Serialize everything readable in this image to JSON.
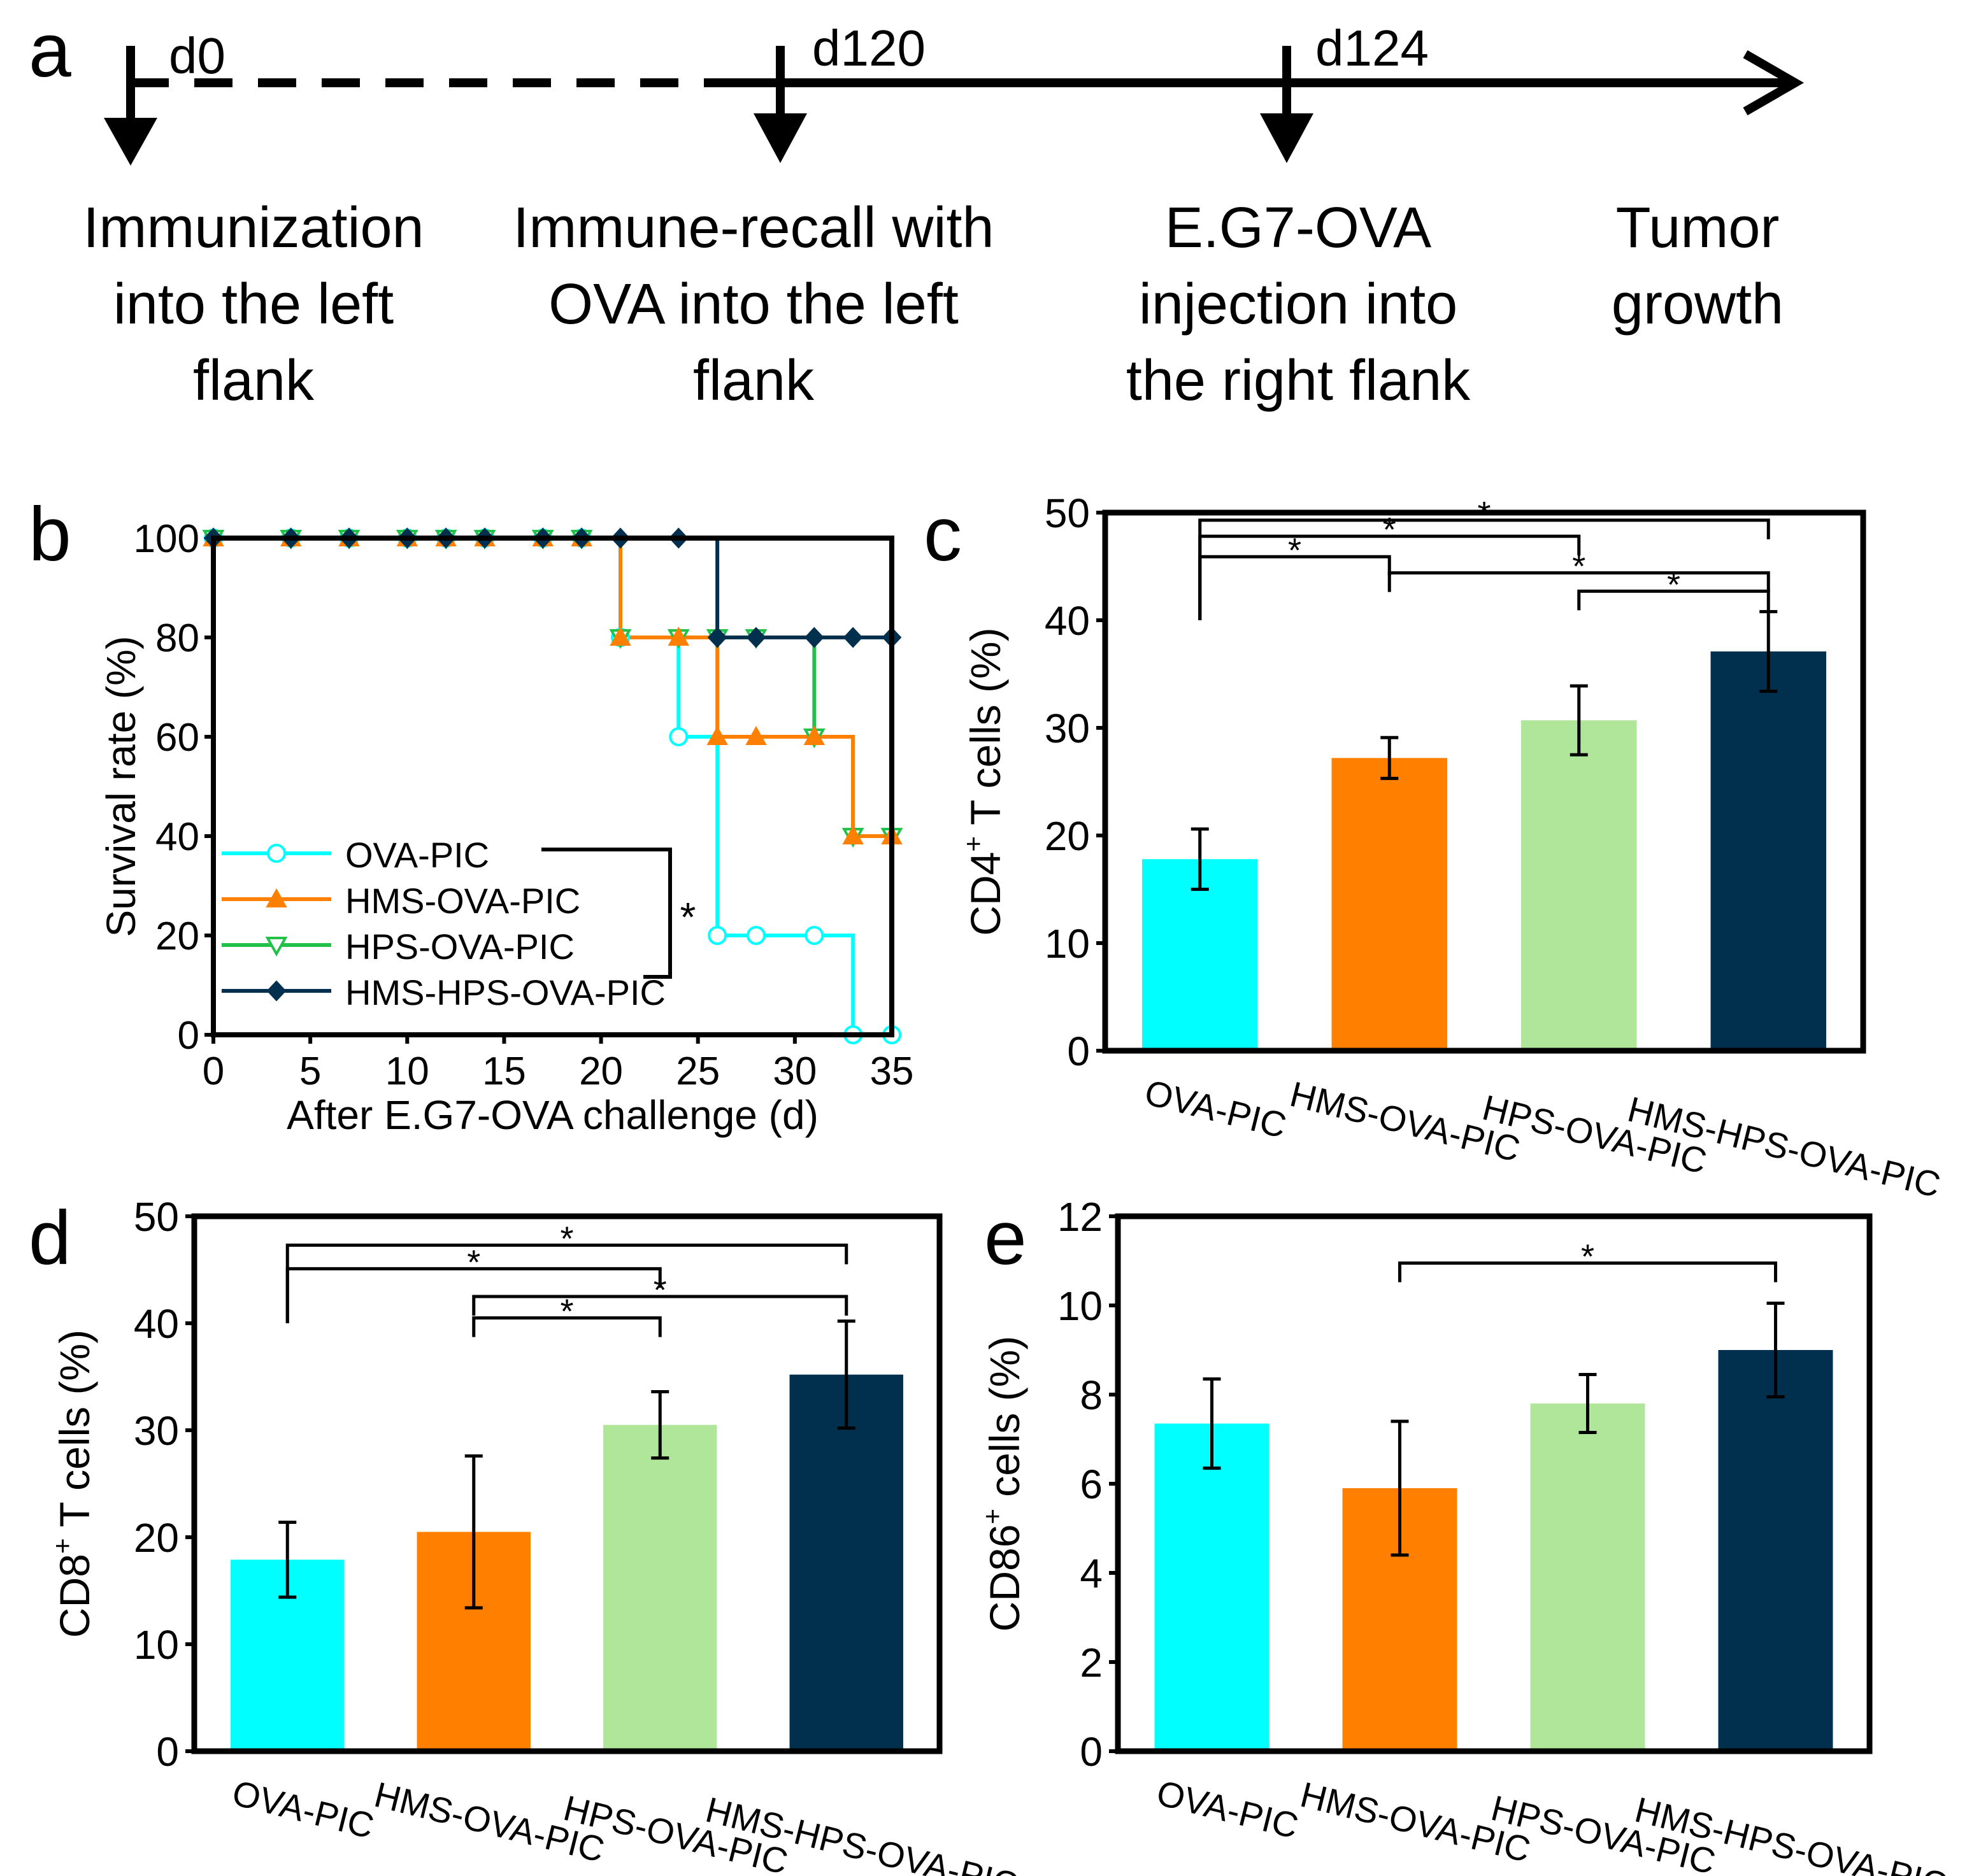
{
  "panel_labels": {
    "a": "a",
    "b": "b",
    "c": "c",
    "d": "d",
    "e": "e"
  },
  "colors": {
    "OVA-PIC": "#00ffff",
    "HMS-OVA-PIC": "#ff8000",
    "HPS-OVA-PIC": "#b0e69a",
    "HMS-HPS-OVA-PIC": "#00304d",
    "HPS-OVA-PIC-line": "#22c24a"
  },
  "timeline": {
    "days": [
      "d0",
      "d120",
      "d124"
    ],
    "steps": [
      [
        "Immunization",
        "into the left",
        "flank"
      ],
      [
        "Immune-recall with",
        "OVA into the left",
        "flank"
      ],
      [
        "E.G7-OVA",
        "injection into",
        "the right flank"
      ],
      [
        "Tumor",
        "growth"
      ]
    ]
  },
  "chart_data": [
    {
      "panel": "b",
      "type": "line",
      "step": true,
      "xlabel": "After E.G7-OVA challenge (d)",
      "ylabel": "Survival rate (%)",
      "xlim": [
        0,
        35
      ],
      "ylim": [
        0,
        100
      ],
      "xticks": [
        0,
        5,
        10,
        15,
        20,
        25,
        30,
        35
      ],
      "yticks": [
        0,
        20,
        40,
        60,
        80,
        100
      ],
      "significance": "*",
      "series": [
        {
          "name": "OVA-PIC",
          "marker": "circle-open",
          "x": [
            0,
            4,
            7,
            10,
            12,
            14,
            17,
            19,
            21,
            24,
            26,
            28,
            31,
            33,
            35
          ],
          "y": [
            100,
            100,
            100,
            100,
            100,
            100,
            100,
            100,
            80,
            60,
            20,
            20,
            20,
            0,
            0
          ]
        },
        {
          "name": "HMS-OVA-PIC",
          "marker": "triangle-up-filled",
          "x": [
            0,
            4,
            7,
            10,
            12,
            14,
            17,
            19,
            21,
            24,
            26,
            28,
            31,
            33,
            35
          ],
          "y": [
            100,
            100,
            100,
            100,
            100,
            100,
            100,
            100,
            80,
            80,
            60,
            60,
            60,
            40,
            40
          ]
        },
        {
          "name": "HPS-OVA-PIC",
          "marker": "triangle-down-open",
          "x": [
            0,
            4,
            7,
            10,
            12,
            14,
            17,
            19,
            21,
            24,
            26,
            28,
            31,
            33,
            35
          ],
          "y": [
            100,
            100,
            100,
            100,
            100,
            100,
            100,
            100,
            80,
            80,
            80,
            80,
            60,
            40,
            40
          ]
        },
        {
          "name": "HMS-HPS-OVA-PIC",
          "marker": "diamond-filled",
          "x": [
            0,
            4,
            7,
            10,
            12,
            14,
            17,
            19,
            21,
            24,
            26,
            28,
            31,
            33,
            35
          ],
          "y": [
            100,
            100,
            100,
            100,
            100,
            100,
            100,
            100,
            100,
            100,
            80,
            80,
            80,
            80,
            80
          ]
        }
      ]
    },
    {
      "panel": "c",
      "type": "bar",
      "ylabel": "CD4",
      "ylabel_sup": "+",
      "ylabel_rest": " T cells (%)",
      "categories": [
        "OVA-PIC",
        "HMS-OVA-PIC",
        "HPS-OVA-PIC",
        "HMS-HPS-OVA-PIC"
      ],
      "values": [
        17.8,
        27.2,
        30.7,
        37.1
      ],
      "errors": [
        2.8,
        1.9,
        3.2,
        3.7
      ],
      "ylim": [
        0,
        50
      ],
      "yticks": [
        0,
        10,
        20,
        30,
        40,
        50
      ],
      "significance": [
        {
          "pair": [
            0,
            3
          ],
          "y": 49.3,
          "label": "*"
        },
        {
          "pair": [
            0,
            2
          ],
          "y": 47.8,
          "label": "*"
        },
        {
          "pair": [
            0,
            1
          ],
          "y": 45.9,
          "label": "*"
        },
        {
          "pair": [
            1,
            3
          ],
          "y": 44.4,
          "label": "*"
        },
        {
          "pair": [
            2,
            3
          ],
          "y": 42.7,
          "label": "*"
        }
      ]
    },
    {
      "panel": "d",
      "type": "bar",
      "ylabel": "CD8",
      "ylabel_sup": "+",
      "ylabel_rest": " T cells (%)",
      "categories": [
        "OVA-PIC",
        "HMS-OVA-PIC",
        "HPS-OVA-PIC",
        "HMS-HPS-OVA-PIC"
      ],
      "values": [
        17.9,
        20.5,
        30.5,
        35.2
      ],
      "errors": [
        3.5,
        7.1,
        3.1,
        5.0
      ],
      "ylim": [
        0,
        50
      ],
      "yticks": [
        0,
        10,
        20,
        30,
        40,
        50
      ],
      "significance": [
        {
          "pair": [
            0,
            3
          ],
          "y": 47.3,
          "label": "*"
        },
        {
          "pair": [
            0,
            2
          ],
          "y": 45.1,
          "label": "*"
        },
        {
          "pair": [
            1,
            3
          ],
          "y": 42.5,
          "label": "*"
        },
        {
          "pair": [
            1,
            2
          ],
          "y": 40.5,
          "label": "*"
        }
      ]
    },
    {
      "panel": "e",
      "type": "bar",
      "ylabel": "CD86",
      "ylabel_sup": "+",
      "ylabel_rest": " cells (%)",
      "categories": [
        "OVA-PIC",
        "HMS-OVA-PIC",
        "HPS-OVA-PIC",
        "HMS-HPS-OVA-PIC"
      ],
      "values": [
        7.35,
        5.9,
        7.8,
        9.0
      ],
      "errors": [
        1.0,
        1.5,
        0.65,
        1.05
      ],
      "ylim": [
        0,
        12
      ],
      "yticks": [
        0,
        2,
        4,
        6,
        8,
        10,
        12
      ],
      "significance": [
        {
          "pair": [
            1,
            3
          ],
          "y": 10.95,
          "label": "*"
        }
      ]
    }
  ]
}
